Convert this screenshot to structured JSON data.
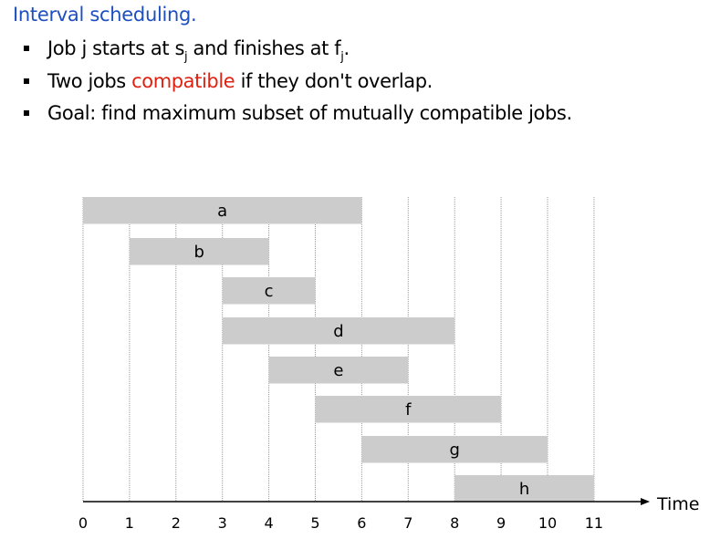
{
  "title": "Interval scheduling.",
  "bullets": {
    "b1": {
      "pre": "Job j starts at s",
      "sub1": "j",
      "mid": " and finishes at f",
      "sub2": "j",
      "post": "."
    },
    "b2": {
      "pre": "Two jobs ",
      "highlight": "compatible",
      "post": " if they don't overlap."
    },
    "b3": {
      "text": "Goal: find maximum subset of mutually compatible jobs."
    }
  },
  "colors": {
    "title": "#1d4fc0",
    "highlight": "#e02010",
    "bar": "#cccccc"
  },
  "chart_data": {
    "type": "gantt",
    "xlabel": "Time",
    "xlim": [
      0,
      11
    ],
    "ticks": [
      "0",
      "1",
      "2",
      "3",
      "4",
      "5",
      "6",
      "7",
      "8",
      "9",
      "10",
      "11"
    ],
    "grid": true,
    "jobs": [
      {
        "name": "a",
        "start": 0,
        "end": 6
      },
      {
        "name": "b",
        "start": 1,
        "end": 4
      },
      {
        "name": "c",
        "start": 3,
        "end": 5
      },
      {
        "name": "d",
        "start": 3,
        "end": 8
      },
      {
        "name": "e",
        "start": 4,
        "end": 7
      },
      {
        "name": "f",
        "start": 5,
        "end": 9
      },
      {
        "name": "g",
        "start": 6,
        "end": 10
      },
      {
        "name": "h",
        "start": 8,
        "end": 11
      }
    ]
  }
}
